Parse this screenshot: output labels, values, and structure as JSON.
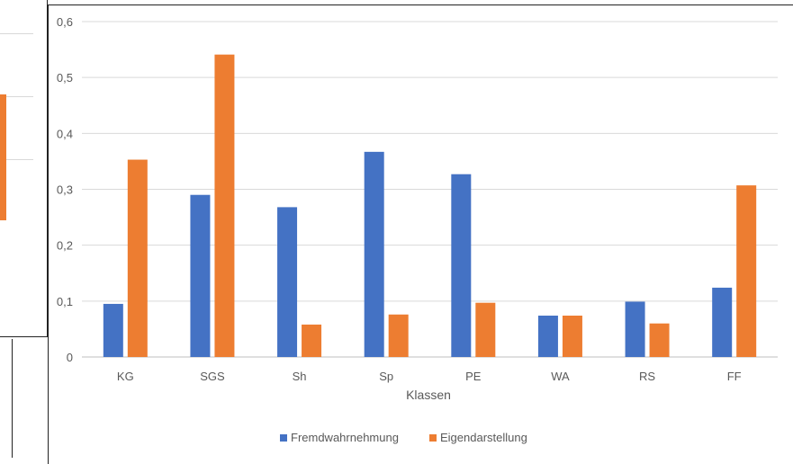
{
  "chart_data": {
    "type": "bar",
    "title": "",
    "xlabel": "Klassen",
    "ylabel": "",
    "categories": [
      "KG",
      "SGS",
      "Sh",
      "Sp",
      "PE",
      "WA",
      "RS",
      "FF"
    ],
    "ylim": [
      0,
      0.6
    ],
    "yticks": [
      0,
      0.1,
      0.2,
      0.3,
      0.4,
      0.5,
      0.6
    ],
    "ytick_labels": [
      "0",
      "0,1",
      "0,2",
      "0,3",
      "0,4",
      "0,5",
      "0,6"
    ],
    "grid": true,
    "legend_position": "bottom",
    "series": [
      {
        "name": "Fremdwahrnehmung",
        "color": "#4472c4",
        "values": [
          0.095,
          0.29,
          0.268,
          0.367,
          0.327,
          0.074,
          0.099,
          0.124
        ]
      },
      {
        "name": "Eigendarstellung",
        "color": "#ed7d31",
        "values": [
          0.353,
          0.541,
          0.058,
          0.076,
          0.097,
          0.074,
          0.06,
          0.307
        ]
      }
    ]
  }
}
